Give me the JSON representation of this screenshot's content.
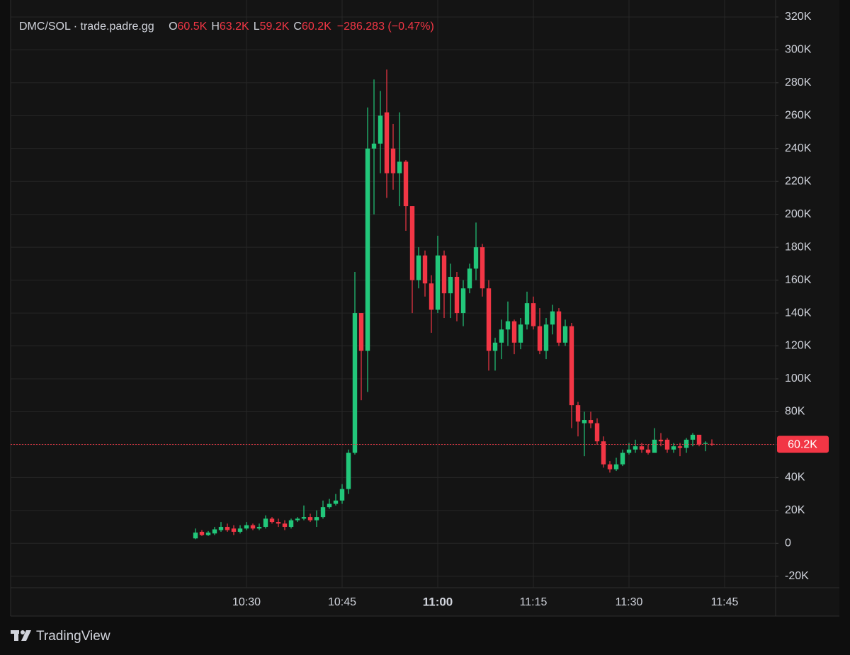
{
  "chart_data": {
    "type": "candlestick",
    "header": {
      "symbol": "DMC/SOL · trade.padre.gg",
      "ohlc": [
        {
          "label": "O",
          "value": "60.5K"
        },
        {
          "label": "H",
          "value": "63.2K"
        },
        {
          "label": "L",
          "value": "59.2K"
        },
        {
          "label": "C",
          "value": "60.2K"
        }
      ],
      "change": "−286.283 (−0.47%)"
    },
    "x": [
      "10:22",
      "10:23",
      "10:24",
      "10:25",
      "10:26",
      "10:27",
      "10:28",
      "10:29",
      "10:30",
      "10:31",
      "10:32",
      "10:33",
      "10:34",
      "10:35",
      "10:36",
      "10:37",
      "10:38",
      "10:39",
      "10:40",
      "10:41",
      "10:42",
      "10:43",
      "10:44",
      "10:45",
      "10:46",
      "10:47",
      "10:48",
      "10:49",
      "10:50",
      "10:51",
      "10:52",
      "10:53",
      "10:54",
      "10:55",
      "10:56",
      "10:57",
      "10:58",
      "10:59",
      "11:00",
      "11:01",
      "11:02",
      "11:03",
      "11:04",
      "11:05",
      "11:06",
      "11:07",
      "11:08",
      "11:09",
      "11:10",
      "11:11",
      "11:12",
      "11:13",
      "11:14",
      "11:15",
      "11:16",
      "11:17",
      "11:18",
      "11:19",
      "11:20",
      "11:21",
      "11:22",
      "11:23",
      "11:24",
      "11:25",
      "11:26",
      "11:27",
      "11:28",
      "11:29",
      "11:30",
      "11:31",
      "11:32",
      "11:33",
      "11:34",
      "11:35",
      "11:36",
      "11:37",
      "11:38",
      "11:39",
      "11:40",
      "11:41",
      "11:42",
      "11:43"
    ],
    "open": [
      3000,
      7000,
      5000,
      6000,
      8000,
      10000,
      9000,
      7000,
      9000,
      11000,
      9000,
      10000,
      15000,
      13000,
      12000,
      10000,
      14000,
      15000,
      16000,
      14000,
      16000,
      22000,
      24000,
      26000,
      33000,
      55000,
      140000,
      117000,
      240000,
      243000,
      262000,
      240000,
      225000,
      232000,
      205000,
      160000,
      175000,
      158000,
      142000,
      175000,
      152000,
      162000,
      140000,
      155000,
      167000,
      180000,
      155000,
      117000,
      122000,
      130000,
      135000,
      122000,
      133000,
      146000,
      132000,
      117000,
      133000,
      141000,
      122000,
      132000,
      84000,
      73000,
      75000,
      73000,
      62000,
      48000,
      45000,
      48000,
      55000,
      57000,
      59000,
      57000,
      55000,
      63000,
      63000,
      57000,
      59000,
      58000,
      63000,
      66000,
      60500,
      60500
    ],
    "high": [
      9000,
      8000,
      7500,
      10000,
      13000,
      12000,
      11000,
      11000,
      13000,
      12000,
      12000,
      17000,
      16000,
      15000,
      14000,
      15000,
      16000,
      23000,
      18000,
      20000,
      26000,
      27000,
      30000,
      36000,
      57000,
      165000,
      140000,
      265000,
      282000,
      275000,
      288000,
      255000,
      262000,
      233000,
      205000,
      180000,
      178000,
      163000,
      187000,
      178000,
      170000,
      165000,
      160000,
      170000,
      195000,
      182000,
      160000,
      125000,
      136000,
      147000,
      136000,
      137000,
      153000,
      150000,
      143000,
      137000,
      145000,
      143000,
      136000,
      134000,
      86000,
      80000,
      80000,
      76000,
      65000,
      50000,
      52000,
      57000,
      61000,
      63000,
      61000,
      60000,
      70000,
      67000,
      64000,
      61000,
      61000,
      64000,
      67000,
      66000,
      62000,
      63200
    ],
    "low": [
      2500,
      4500,
      4500,
      5000,
      7000,
      7000,
      5000,
      6000,
      8000,
      8000,
      8000,
      9000,
      12000,
      10000,
      8000,
      9000,
      13000,
      14000,
      13000,
      10000,
      15000,
      21000,
      23000,
      24000,
      30000,
      54000,
      87000,
      92000,
      200000,
      225000,
      210000,
      215000,
      205000,
      190000,
      140000,
      155000,
      150000,
      128000,
      140000,
      137000,
      137000,
      135000,
      132000,
      152000,
      160000,
      150000,
      105000,
      105000,
      112000,
      120000,
      115000,
      118000,
      130000,
      130000,
      115000,
      112000,
      127000,
      120000,
      120000,
      70000,
      65000,
      53000,
      70000,
      60000,
      46000,
      43000,
      44000,
      47000,
      54000,
      55000,
      55000,
      54000,
      55000,
      59000,
      55000,
      55000,
      53000,
      55000,
      59000,
      59000,
      56000,
      59200
    ],
    "close": [
      6500,
      5000,
      6500,
      8500,
      10000,
      8000,
      7000,
      9000,
      11000,
      9000,
      10000,
      15000,
      13000,
      12000,
      10000,
      14000,
      15000,
      16000,
      14000,
      16000,
      22000,
      24000,
      26000,
      33000,
      55000,
      140000,
      117000,
      240000,
      243000,
      260000,
      225000,
      225000,
      232000,
      205000,
      160000,
      175000,
      158000,
      142000,
      175000,
      152000,
      162000,
      140000,
      155000,
      167000,
      180000,
      155000,
      117000,
      122000,
      130000,
      135000,
      122000,
      133000,
      146000,
      132000,
      117000,
      133000,
      141000,
      122000,
      132000,
      84000,
      74000,
      75000,
      73000,
      62000,
      48000,
      45000,
      48000,
      55000,
      57000,
      59000,
      57000,
      55000,
      63000,
      62000,
      57000,
      59000,
      58000,
      63000,
      66000,
      60000,
      61000,
      60200
    ],
    "up_color": "#22c77a",
    "down_color": "#f23645",
    "xlim": [
      "09:53",
      "11:53"
    ],
    "xticks": [
      "10:30",
      "10:45",
      "11:00",
      "11:15",
      "11:30",
      "11:45"
    ],
    "ylim": [
      -27000,
      326000
    ],
    "yticks": [
      {
        "value": -20000,
        "label": "-20K"
      },
      0,
      {
        "value": 20000,
        "label": "20K"
      },
      {
        "value": 40000,
        "label": "40K"
      },
      {
        "value": 60000,
        "label": "60K"
      },
      {
        "value": 80000,
        "label": "80K"
      },
      {
        "value": 100000,
        "label": "100K"
      },
      {
        "value": 120000,
        "label": "120K"
      },
      {
        "value": 140000,
        "label": "140K"
      },
      {
        "value": 160000,
        "label": "160K"
      },
      {
        "value": 180000,
        "label": "180K"
      },
      {
        "value": 200000,
        "label": "200K"
      },
      {
        "value": 220000,
        "label": "220K"
      },
      {
        "value": 240000,
        "label": "240K"
      },
      {
        "value": 260000,
        "label": "260K"
      },
      {
        "value": 280000,
        "label": "280K"
      },
      {
        "value": 300000,
        "label": "300K"
      },
      {
        "value": 320000,
        "label": "320K"
      }
    ],
    "grid": true,
    "last_price": {
      "value": 60200,
      "label": "60.2K"
    },
    "watermark": "TradingView"
  }
}
